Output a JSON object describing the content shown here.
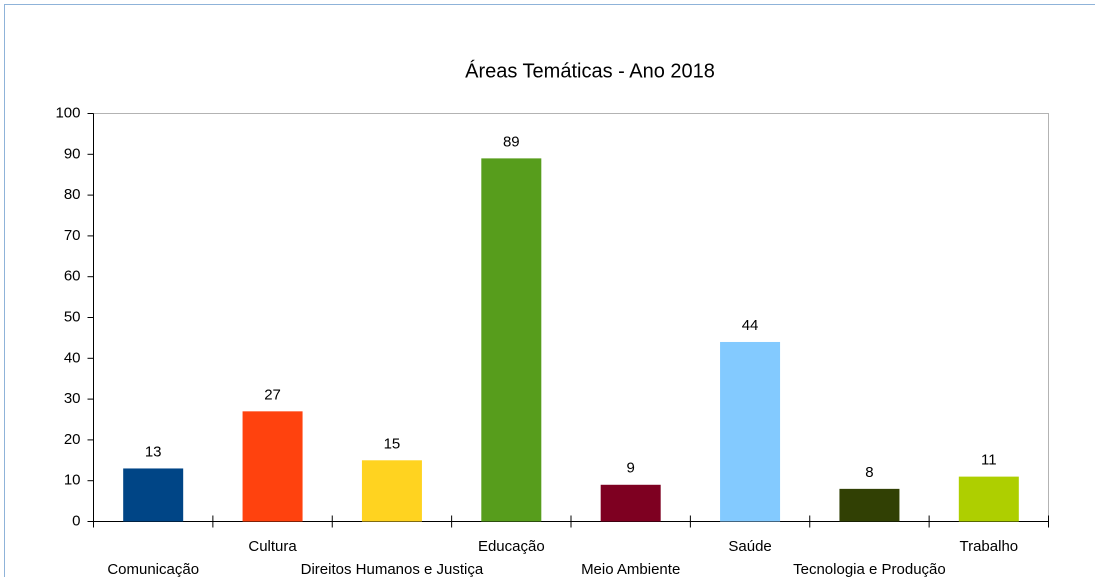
{
  "chart_data": {
    "type": "bar",
    "title": "Áreas Temáticas - Ano 2018",
    "categories": [
      "Comunicação",
      "Cultura",
      "Direitos Humanos e Justiça",
      "Educação",
      "Meio Ambiente",
      "Saúde",
      "Tecnologia e Produção",
      "Trabalho"
    ],
    "values": [
      13,
      27,
      15,
      89,
      9,
      44,
      8,
      11
    ],
    "colors": [
      "#004586",
      "#ff420e",
      "#ffd320",
      "#579d1c",
      "#7e0021",
      "#83caff",
      "#314004",
      "#aecf00"
    ],
    "ylim": [
      0,
      100
    ],
    "yticks": [
      0,
      10,
      20,
      30,
      40,
      50,
      60,
      70,
      80,
      90,
      100
    ],
    "grid": false
  }
}
